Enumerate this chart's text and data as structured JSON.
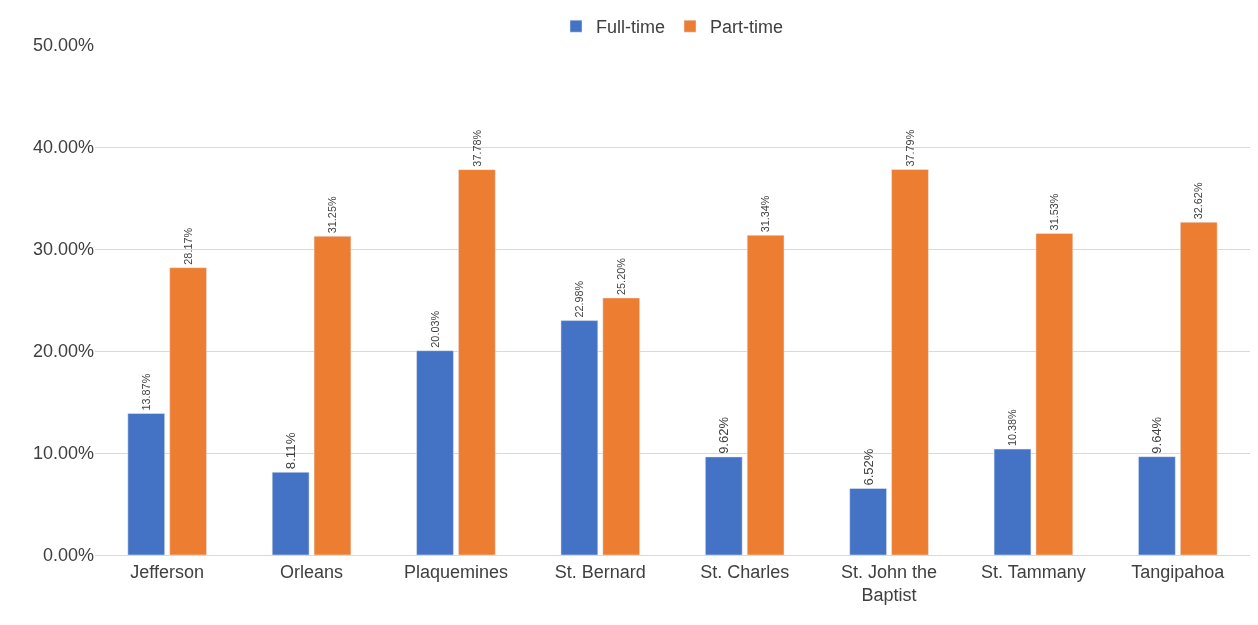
{
  "chart_data": {
    "type": "bar",
    "categories": [
      "Jefferson",
      "Orleans",
      "Plaquemines",
      "St. Bernard",
      "St. Charles",
      "St. John the Baptist",
      "St. Tammany",
      "Tangipahoa"
    ],
    "series": [
      {
        "name": "Full-time",
        "color": "#4472c4",
        "values": [
          13.87,
          8.11,
          20.03,
          22.98,
          9.62,
          6.52,
          10.38,
          9.64
        ],
        "value_labels": [
          "13.87%",
          "8.11%",
          "20.03%",
          "22.98%",
          "9.62%",
          "6.52%",
          "10.38%",
          "9.64%"
        ]
      },
      {
        "name": "Part-time",
        "color": "#ed7d31",
        "values": [
          28.17,
          31.25,
          37.78,
          25.2,
          31.34,
          37.79,
          31.53,
          32.62
        ],
        "value_labels": [
          "28.17%",
          "31.25%",
          "37.78%",
          "25.20%",
          "31.34%",
          "37.79%",
          "31.53%",
          "32.62%"
        ]
      }
    ],
    "ylim": [
      0,
      50
    ],
    "yticks": [
      {
        "value": 0,
        "label": "0.00%"
      },
      {
        "value": 10,
        "label": "10.00%"
      },
      {
        "value": 20,
        "label": "20.00%"
      },
      {
        "value": 30,
        "label": "30.00%"
      },
      {
        "value": 40,
        "label": "40.00%"
      },
      {
        "value": 50,
        "label": "50.00%"
      }
    ],
    "grid": "y",
    "legend": "top"
  }
}
